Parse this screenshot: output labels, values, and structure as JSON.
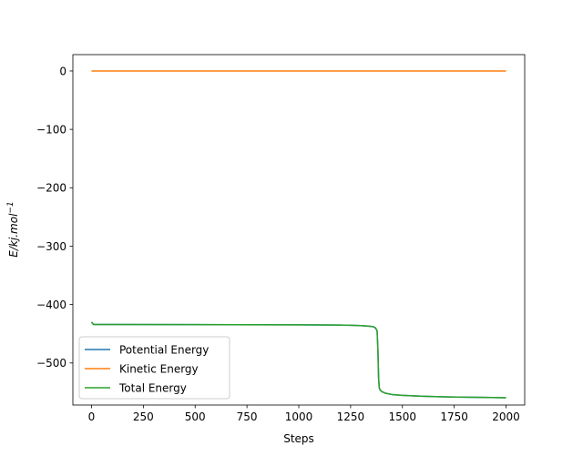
{
  "chart_data": {
    "type": "line",
    "title": "",
    "xlabel": "Steps",
    "ylabel_main": "E/kj.mol",
    "ylabel_sup": "−1",
    "xlim": [
      -90,
      2090
    ],
    "ylim": [
      -572,
      28
    ],
    "xticks": [
      0,
      250,
      500,
      750,
      1000,
      1250,
      1500,
      1750,
      2000
    ],
    "xtick_labels": [
      "0",
      "250",
      "500",
      "750",
      "1000",
      "1250",
      "1500",
      "1750",
      "2000"
    ],
    "yticks": [
      0,
      -100,
      -200,
      -300,
      -400,
      -500
    ],
    "ytick_labels": [
      "0",
      "−100",
      "−200",
      "−300",
      "−400",
      "−500"
    ],
    "legend_position": "lower-left",
    "series": [
      {
        "name": "Potential Energy",
        "color": "#1f77b4",
        "x": [
          0,
          10,
          20,
          100,
          500,
          1000,
          1200,
          1300,
          1340,
          1360,
          1370,
          1378,
          1382,
          1385,
          1388,
          1392,
          1400,
          1420,
          1450,
          1500,
          1600,
          1700,
          1800,
          1900,
          2000
        ],
        "y": [
          -430,
          -434,
          -434,
          -434,
          -434.3,
          -434.6,
          -435,
          -436,
          -437,
          -438,
          -440,
          -445,
          -480,
          -525,
          -542,
          -546,
          -549,
          -552,
          -554,
          -555.5,
          -557,
          -558,
          -558.5,
          -559,
          -559.5
        ]
      },
      {
        "name": "Kinetic Energy",
        "color": "#ff7f0e",
        "x": [
          0,
          2000
        ],
        "y": [
          0,
          0
        ]
      },
      {
        "name": "Total Energy",
        "color": "#2ca02c",
        "x": [
          0,
          10,
          20,
          100,
          500,
          1000,
          1200,
          1300,
          1340,
          1360,
          1370,
          1378,
          1382,
          1385,
          1388,
          1392,
          1400,
          1420,
          1450,
          1500,
          1600,
          1700,
          1800,
          1900,
          2000
        ],
        "y": [
          -430,
          -434,
          -434,
          -434,
          -434.3,
          -434.6,
          -435,
          -436,
          -437,
          -438,
          -440,
          -445,
          -480,
          -525,
          -542,
          -546,
          -549,
          -552,
          -554,
          -555.5,
          -557,
          -558,
          -558.5,
          -559,
          -559.5
        ]
      }
    ]
  }
}
